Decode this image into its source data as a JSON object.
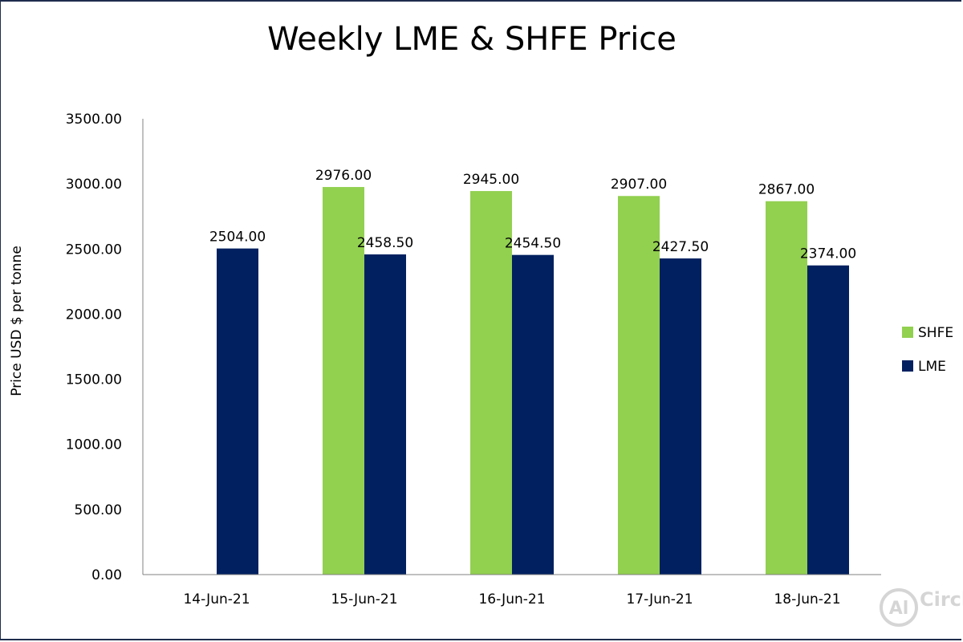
{
  "chart_data": {
    "type": "bar",
    "title": "Weekly LME & SHFE Price",
    "xlabel": "",
    "ylabel": "Price  USD  $  per  tonne",
    "categories": [
      "14-Jun-21",
      "15-Jun-21",
      "16-Jun-21",
      "17-Jun-21",
      "18-Jun-21"
    ],
    "series": [
      {
        "name": "SHFE",
        "color": "#92d050",
        "values": [
          null,
          2976.0,
          2945.0,
          2907.0,
          2867.0
        ],
        "labels": [
          "",
          "2976.00",
          "2945.00",
          "2907.00",
          "2867.00"
        ]
      },
      {
        "name": "LME",
        "color": "#002060",
        "values": [
          2504.0,
          2458.5,
          2454.5,
          2427.5,
          2374.0
        ],
        "labels": [
          "2504.00",
          "2458.50",
          "2454.50",
          "2427.50",
          "2374.00"
        ]
      }
    ],
    "ylim": [
      0,
      3500
    ],
    "yticks": [
      "0.00",
      "500.00",
      "1000.00",
      "1500.00",
      "2000.00",
      "2500.00",
      "3000.00",
      "3500.00"
    ],
    "grid": false,
    "legend_position": "right"
  },
  "watermark": {
    "logo_text": "Al",
    "brand_text": "Circle"
  }
}
